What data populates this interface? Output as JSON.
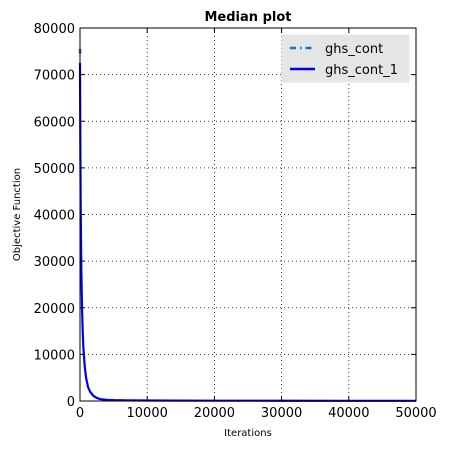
{
  "chart_data": {
    "type": "line",
    "title": "Median plot",
    "xlabel": "Iterations",
    "ylabel": "Objective Function",
    "xlim": [
      0,
      50000
    ],
    "ylim": [
      0,
      80000
    ],
    "xticks": [
      0,
      10000,
      20000,
      30000,
      40000,
      50000
    ],
    "yticks": [
      0,
      10000,
      20000,
      30000,
      40000,
      50000,
      60000,
      70000,
      80000
    ],
    "grid": true,
    "legend_position": "top-right",
    "series": [
      {
        "name": "ghs_cont",
        "style": "dash-dot",
        "color": "#1f6fd0",
        "x": [
          0,
          5,
          10,
          20
        ],
        "y": [
          75500,
          75200,
          74900,
          74500
        ]
      },
      {
        "name": "ghs_cont_1",
        "style": "solid",
        "color": "#0000ee",
        "x": [
          0,
          50,
          100,
          200,
          300,
          400,
          500,
          700,
          900,
          1200,
          1500,
          2000,
          2500,
          3000,
          4000,
          5000,
          7000,
          10000,
          20000,
          30000,
          40000,
          50000
        ],
        "y": [
          72500,
          55000,
          42000,
          28000,
          20000,
          15000,
          11500,
          7500,
          5000,
          3000,
          2000,
          1100,
          650,
          420,
          250,
          180,
          130,
          100,
          70,
          55,
          45,
          40
        ]
      }
    ]
  }
}
